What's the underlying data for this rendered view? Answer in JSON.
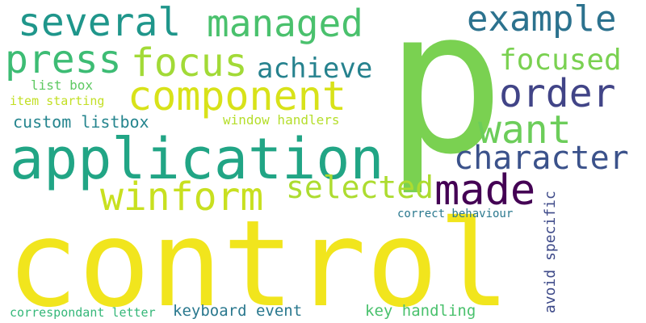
{
  "words": [
    {
      "text": "control",
      "color": "#f1e51d"
    },
    {
      "text": "p",
      "color": "#7ad151"
    },
    {
      "text": "application",
      "color": "#21a585"
    },
    {
      "text": "several",
      "color": "#1f968b"
    },
    {
      "text": "managed",
      "color": "#4ac16d"
    },
    {
      "text": "example",
      "color": "#2c728e"
    },
    {
      "text": "press",
      "color": "#3dbc74"
    },
    {
      "text": "focus",
      "color": "#a2da37"
    },
    {
      "text": "achieve",
      "color": "#26828e"
    },
    {
      "text": "focused",
      "color": "#7ad151"
    },
    {
      "text": "component",
      "color": "#d8e219"
    },
    {
      "text": "order",
      "color": "#414487"
    },
    {
      "text": "want",
      "color": "#6ccd5a"
    },
    {
      "text": "list box",
      "color": "#5ec962"
    },
    {
      "text": "item starting",
      "color": "#c2df23"
    },
    {
      "text": "custom listbox",
      "color": "#25858e"
    },
    {
      "text": "window handlers",
      "color": "#b5de2b"
    },
    {
      "text": "character",
      "color": "#3b528b"
    },
    {
      "text": "winform",
      "color": "#c8e020"
    },
    {
      "text": "selected",
      "color": "#addc30"
    },
    {
      "text": "made",
      "color": "#440154"
    },
    {
      "text": "correct behaviour",
      "color": "#2a788e"
    },
    {
      "text": "avoid specific",
      "color": "#3e4a89"
    },
    {
      "text": "correspondant letter",
      "color": "#35b779"
    },
    {
      "text": "keyboard event",
      "color": "#2a788e"
    },
    {
      "text": "key handling",
      "color": "#4ac16d"
    }
  ]
}
